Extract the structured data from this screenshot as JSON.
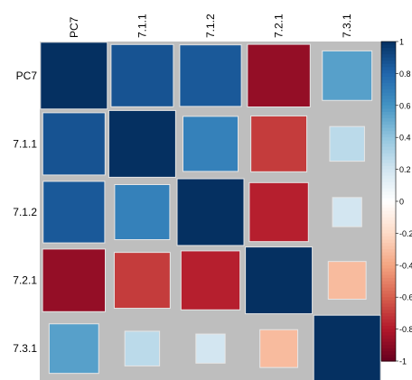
{
  "chart_data": {
    "type": "heatmap",
    "style": "correlation-matrix-square",
    "variables": [
      "PC7",
      "7.1.1",
      "7.1.2",
      "7.2.1",
      "7.3.1"
    ],
    "matrix": [
      [
        1.0,
        0.87,
        0.85,
        -0.88,
        0.55
      ],
      [
        0.87,
        1.0,
        0.68,
        -0.7,
        0.27
      ],
      [
        0.85,
        0.68,
        1.0,
        -0.78,
        0.19
      ],
      [
        -0.88,
        -0.7,
        -0.78,
        1.0,
        -0.32
      ],
      [
        0.55,
        0.27,
        0.19,
        -0.32,
        1.0
      ]
    ],
    "colorbar": {
      "range": [
        -1,
        1
      ],
      "ticks": [
        1,
        0.8,
        0.6,
        0.4,
        0.2,
        0,
        -0.2,
        -0.4,
        -0.6,
        -0.8,
        -1
      ],
      "tick_labels": [
        "1",
        "0.8",
        "0.6",
        "0.4",
        "0.2",
        "0",
        "-0.2",
        "-0.4",
        "-0.6",
        "-0.8",
        "-1"
      ],
      "position": "right"
    },
    "colors": {
      "background": "#bebebe",
      "cell_border": "#e6e6e6",
      "stops": [
        "#67001f",
        "#b2182b",
        "#d6604d",
        "#f4a582",
        "#fddbc7",
        "#ffffff",
        "#d1e5f0",
        "#92c5de",
        "#4393c3",
        "#2166ac",
        "#053061"
      ]
    }
  }
}
